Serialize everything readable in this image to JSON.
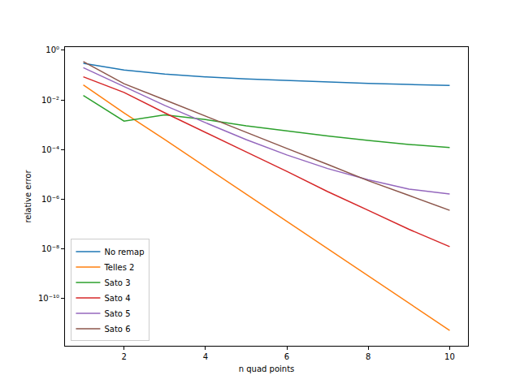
{
  "chart_data": {
    "type": "line",
    "x_label": "n quad points",
    "y_label": "relative error",
    "log": "y",
    "grid": false,
    "legend": "lower left",
    "x": [
      1,
      2,
      3,
      4,
      5,
      6,
      7,
      8,
      9,
      10
    ],
    "xlim": [
      0.55,
      10.45
    ],
    "xticks": [
      2,
      4,
      6,
      8,
      10
    ],
    "ylim": [
      1.2e-12,
      1.35
    ],
    "yticks": [
      {
        "value": 1,
        "label": "10⁰"
      },
      {
        "value": 0.01,
        "label": "10⁻²"
      },
      {
        "value": 0.0001,
        "label": "10⁻⁴"
      },
      {
        "value": 1e-06,
        "label": "10⁻⁶"
      },
      {
        "value": 1e-08,
        "label": "10⁻⁸"
      },
      {
        "value": 1e-10,
        "label": "10⁻¹⁰"
      }
    ],
    "series": [
      {
        "name": "No remap",
        "color": "#1f77b4",
        "values": [
          0.3,
          0.16,
          0.11,
          0.085,
          0.07,
          0.06,
          0.052,
          0.046,
          0.042,
          0.038
        ]
      },
      {
        "name": "Telles 2",
        "color": "#ff7f0e",
        "values": [
          0.04,
          0.003,
          0.00025,
          2e-05,
          1.6e-06,
          1.3e-07,
          1e-08,
          8e-10,
          6.3e-11,
          5e-12
        ]
      },
      {
        "name": "Sato 3",
        "color": "#2ca02c",
        "values": [
          0.015,
          0.0014,
          0.0025,
          0.0016,
          0.0009,
          0.00055,
          0.00035,
          0.00023,
          0.00016,
          0.00012
        ]
      },
      {
        "name": "Sato 4",
        "color": "#d62728",
        "values": [
          0.085,
          0.02,
          0.003,
          0.0005,
          8e-05,
          1.3e-05,
          2e-06,
          3.5e-07,
          6e-08,
          1.2e-08
        ]
      },
      {
        "name": "Sato 5",
        "color": "#9467bd",
        "values": [
          0.2,
          0.035,
          0.006,
          0.0012,
          0.00025,
          6e-05,
          1.7e-05,
          6e-06,
          2.5e-06,
          1.6e-06
        ]
      },
      {
        "name": "Sato 6",
        "color": "#8c564b",
        "values": [
          0.35,
          0.045,
          0.01,
          0.0022,
          0.0005,
          0.00011,
          2.5e-05,
          5.5e-06,
          1.4e-06,
          3.5e-07
        ]
      }
    ]
  }
}
